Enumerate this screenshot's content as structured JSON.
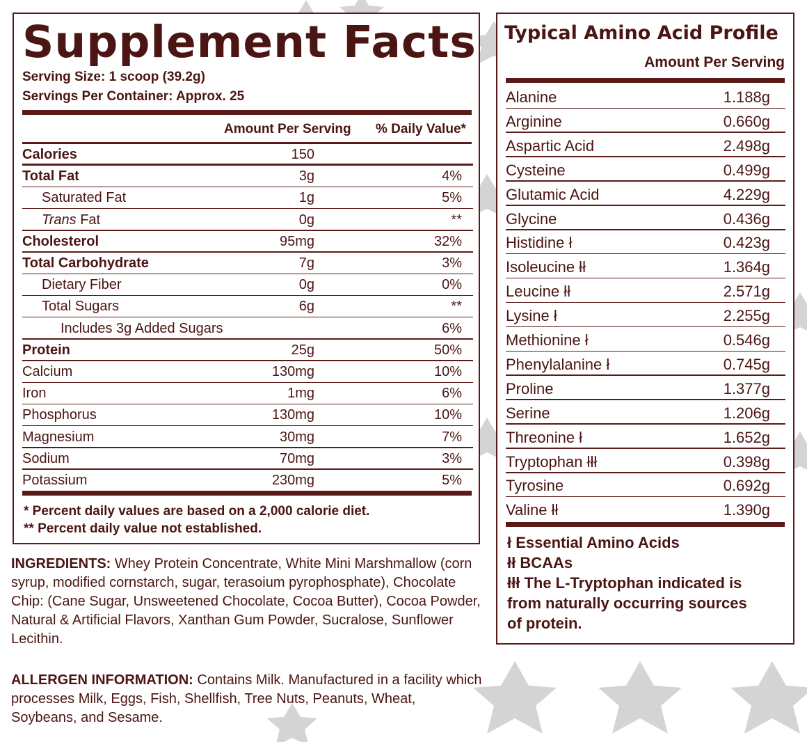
{
  "supplement_facts": {
    "title": "Supplement Facts",
    "serving_size": "Serving Size: 1 scoop (39.2g)",
    "servings_per_container": "Servings Per Container: Approx. 25",
    "col_amount": "Amount Per Serving",
    "col_dv": "% Daily Value*",
    "rows": [
      {
        "name": "Calories",
        "amount": "150",
        "dv": ""
      },
      {
        "name": "Total Fat",
        "amount": "3g",
        "dv": "4%"
      },
      {
        "name": "Saturated Fat",
        "amount": "1g",
        "dv": "5%"
      },
      {
        "name": "Trans",
        "name_suffix": " Fat",
        "amount": "0g",
        "dv": "**"
      },
      {
        "name": "Cholesterol",
        "amount": "95mg",
        "dv": "32%"
      },
      {
        "name": "Total Carbohydrate",
        "amount": "7g",
        "dv": "3%"
      },
      {
        "name": "Dietary Fiber",
        "amount": "0g",
        "dv": "0%"
      },
      {
        "name": "Total Sugars",
        "amount": "6g",
        "dv": "**"
      },
      {
        "name": "Includes 3g Added Sugars",
        "amount": "",
        "dv": "6%"
      },
      {
        "name": "Protein",
        "amount": "25g",
        "dv": "50%"
      },
      {
        "name": "Calcium",
        "amount": "130mg",
        "dv": "10%"
      },
      {
        "name": "Iron",
        "amount": "1mg",
        "dv": "6%"
      },
      {
        "name": "Phosphorus",
        "amount": "130mg",
        "dv": "10%"
      },
      {
        "name": "Magnesium",
        "amount": "30mg",
        "dv": "7%"
      },
      {
        "name": "Sodium",
        "amount": "70mg",
        "dv": "3%"
      },
      {
        "name": "Potassium",
        "amount": "230mg",
        "dv": "5%"
      }
    ],
    "footnote_1": "* Percent daily values are based on a 2,000 calorie diet.",
    "footnote_2": "** Percent daily value not established."
  },
  "ingredients": {
    "label": "INGREDIENTS:",
    "text": " Whey Protein Concentrate, White Mini Marshmallow (corn syrup, modified cornstarch, sugar, terasoium pyrophosphate), Chocolate Chip: (Cane Sugar, Unsweetened Chocolate, Cocoa Butter), Cocoa Powder, Natural & Artificial Flavors, Xanthan Gum Powder, Sucralose, Sunflower Lecithin."
  },
  "allergen": {
    "label": "ALLERGEN INFORMATION:",
    "text": " Contains Milk. Manufactured in a facility which processes Milk, Eggs, Fish, Shellfish, Tree Nuts, Peanuts, Wheat, Soybeans, and Sesame."
  },
  "amino_profile": {
    "title": "Typical Amino Acid Profile",
    "subtitle": "Amount Per Serving",
    "rows": [
      {
        "name": "Alanine",
        "value": "1.188g"
      },
      {
        "name": "Arginine",
        "value": "0.660g"
      },
      {
        "name": "Aspartic Acid",
        "value": "2.498g"
      },
      {
        "name": "Cysteine",
        "value": "0.499g"
      },
      {
        "name": "Glutamic Acid",
        "value": "4.229g"
      },
      {
        "name": "Glycine",
        "value": "0.436g"
      },
      {
        "name": "Histidine ł",
        "value": "0.423g"
      },
      {
        "name": "Isoleucine łł",
        "value": "1.364g"
      },
      {
        "name": "Leucine łł",
        "value": "2.571g"
      },
      {
        "name": "Lysine ł",
        "value": "2.255g"
      },
      {
        "name": "Methionine ł",
        "value": "0.546g"
      },
      {
        "name": "Phenylalanine ł",
        "value": "0.745g"
      },
      {
        "name": "Proline",
        "value": "1.377g"
      },
      {
        "name": "Serine",
        "value": "1.206g"
      },
      {
        "name": "Threonine ł",
        "value": "1.652g"
      },
      {
        "name": "Tryptophan łłł",
        "value": "0.398g"
      },
      {
        "name": "Tyrosine",
        "value": "0.692g"
      },
      {
        "name": "Valine łł",
        "value": "1.390g"
      }
    ],
    "legend_1": "ł Essential Amino Acids",
    "legend_2": "łł BCAAs",
    "legend_3a": "łłł The L-Tryptophan indicated is",
    "legend_3b": "from naturally occurring sources",
    "legend_3c": "of protein."
  },
  "colors": {
    "text": "#4a1512",
    "rule": "#5a1a17",
    "star": "#cfcfcf"
  },
  "background_icon": "distressed-star-icon"
}
